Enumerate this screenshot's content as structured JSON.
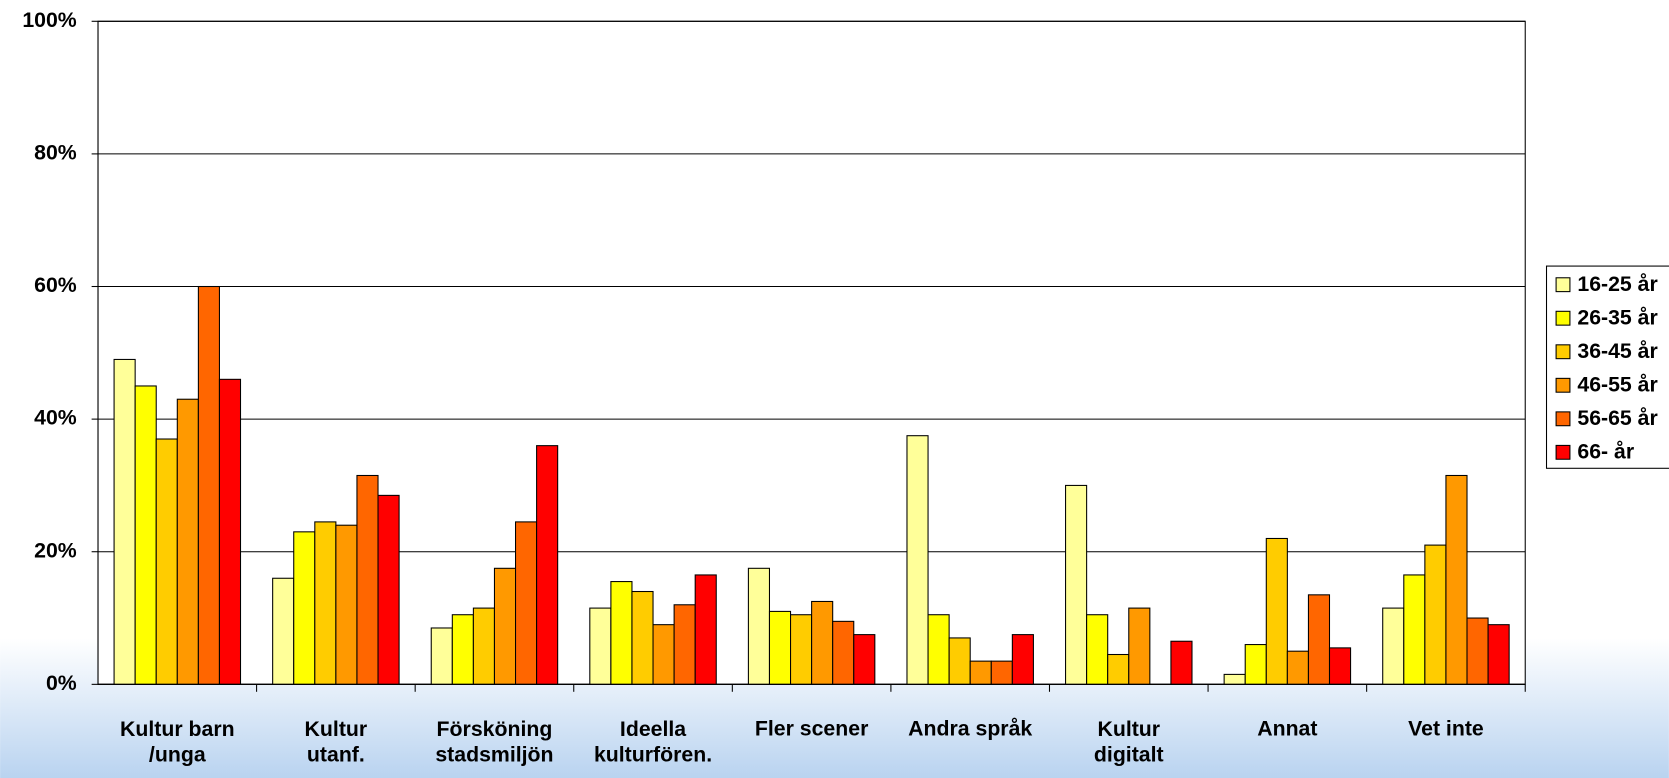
{
  "chart_data": {
    "type": "bar",
    "categories": [
      "Kultur barn\n/unga",
      "Kultur\nutanf.",
      "Försköning\nstadsmiljön",
      "Ideella\nkulturfören.",
      "Fler scener",
      "Andra språk",
      "Kultur\ndigitalt",
      "Annat",
      "Vet inte"
    ],
    "series": [
      {
        "name": "16-25 år",
        "color": "#ffff99",
        "values": [
          49,
          16,
          8.5,
          11.5,
          17.5,
          37.5,
          30,
          1.5,
          11.5
        ]
      },
      {
        "name": "26-35 år",
        "color": "#ffff00",
        "values": [
          45,
          23,
          10.5,
          15.5,
          11,
          10.5,
          10.5,
          6,
          16.5
        ]
      },
      {
        "name": "36-45 år",
        "color": "#ffcc00",
        "values": [
          37,
          24.5,
          11.5,
          14,
          10.5,
          7,
          4.5,
          22,
          21
        ]
      },
      {
        "name": "46-55 år",
        "color": "#ff9900",
        "values": [
          43,
          24,
          17.5,
          9,
          12.5,
          3.5,
          11.5,
          5,
          31.5
        ]
      },
      {
        "name": "56-65 år",
        "color": "#ff6600",
        "values": [
          60,
          31.5,
          24.5,
          12,
          9.5,
          3.5,
          0,
          13.5,
          10
        ]
      },
      {
        "name": "66- år",
        "color": "#ff0000",
        "values": [
          46,
          28.5,
          36,
          16.5,
          7.5,
          7.5,
          6.5,
          5.5,
          9
        ]
      }
    ],
    "ylim": [
      0,
      100
    ],
    "yticks": [
      {
        "value": 0,
        "label": "0%"
      },
      {
        "value": 20,
        "label": "20%"
      },
      {
        "value": 40,
        "label": "40%"
      },
      {
        "value": 60,
        "label": "60%"
      },
      {
        "value": 80,
        "label": "80%"
      },
      {
        "value": 100,
        "label": "100%"
      }
    ],
    "grid": true,
    "legend": "right"
  }
}
